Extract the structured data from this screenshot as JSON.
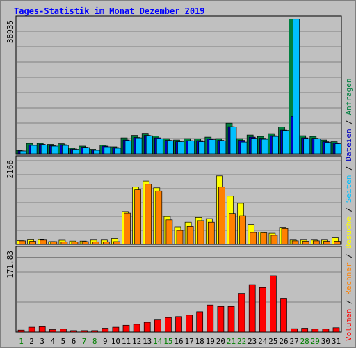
{
  "chart_data": {
    "type": "bar",
    "title": "Tages-Statistik im Monat Dezember 2019",
    "categories": [
      "1",
      "2",
      "3",
      "4",
      "5",
      "6",
      "7",
      "8",
      "9",
      "10",
      "11",
      "12",
      "13",
      "14",
      "15",
      "16",
      "17",
      "18",
      "19",
      "20",
      "21",
      "22",
      "23",
      "24",
      "25",
      "26",
      "27",
      "28",
      "29",
      "30",
      "31"
    ],
    "weekend_days": [
      "1",
      "7",
      "8",
      "14",
      "15",
      "21",
      "22",
      "28",
      "29"
    ],
    "colors": {
      "background": "#c0c0c0",
      "title": "#0000ff",
      "weekday_label": "#000000",
      "weekend_label": "#008000"
    },
    "panels": [
      {
        "name": "top",
        "ytick": "38935",
        "ymax": 38935,
        "series": [
          {
            "name": "Anfragen",
            "color": "#008040",
            "values": [
              1000,
              3000,
              3000,
              2700,
              2900,
              1700,
              2200,
              1300,
              2500,
              2000,
              4600,
              5300,
              5900,
              5100,
              4400,
              4000,
              4400,
              4300,
              4800,
              4400,
              8800,
              4400,
              5400,
              5000,
              5800,
              7700,
              38850,
              5200,
              5000,
              4000,
              3500
            ]
          },
          {
            "name": "Dateien",
            "color": "#0000c0",
            "values": [
              850,
              2500,
              2700,
              2300,
              2600,
              1400,
              1900,
              1100,
              2200,
              1800,
              4000,
              4700,
              5300,
              4600,
              3900,
              3500,
              3800,
              3800,
              4300,
              3900,
              7800,
              3900,
              4800,
              4500,
              5200,
              6800,
              10800,
              4600,
              4500,
              3500,
              3100
            ]
          },
          {
            "name": "Seiten",
            "color": "#00c0ff",
            "values": [
              800,
              2400,
              2500,
              2200,
              2400,
              1300,
              1800,
              1000,
              2000,
              1600,
              3800,
              4600,
              5200,
              4300,
              3800,
              3500,
              3700,
              3500,
              4100,
              3700,
              7700,
              3400,
              4500,
              4200,
              5000,
              6700,
              38800,
              4400,
              4300,
              3300,
              2900
            ]
          }
        ]
      },
      {
        "name": "middle",
        "ytick": "2166",
        "ymax": 2166,
        "series": [
          {
            "name": "Besuche",
            "color": "#ffff00",
            "values": [
              95,
              115,
              120,
              70,
              105,
              85,
              85,
              110,
              110,
              150,
              830,
              1450,
              1600,
              1430,
              700,
              440,
              560,
              680,
              650,
              1730,
              1220,
              1040,
              500,
              310,
              280,
              430,
              110,
              110,
              110,
              110,
              165
            ]
          },
          {
            "name": "Rechner",
            "color": "#ff8000",
            "values": [
              90,
              80,
              110,
              70,
              65,
              60,
              70,
              65,
              65,
              70,
              790,
              1380,
              1520,
              1350,
              620,
              350,
              450,
              600,
              560,
              1450,
              780,
              720,
              300,
              290,
              230,
              400,
              90,
              80,
              90,
              80,
              80
            ]
          }
        ]
      },
      {
        "name": "bottom",
        "ytick": "171.83",
        "ymax": 171.83,
        "series": [
          {
            "name": "Volumen",
            "color": "#ff0000",
            "values": [
              4,
              10,
              11,
              5,
              6,
              3,
              3,
              3,
              8,
              10,
              14,
              16,
              20,
              25,
              30,
              32,
              35,
              42,
              56,
              53,
              53,
              80,
              98,
              92,
              117,
              70,
              7,
              8,
              6,
              6,
              9
            ]
          }
        ]
      }
    ],
    "legend": [
      {
        "label": "Volumen",
        "color": "#ff0000"
      },
      {
        "label": "/",
        "color": "#000000"
      },
      {
        "label": "Rechner",
        "color": "#ff8000"
      },
      {
        "label": "/",
        "color": "#000000"
      },
      {
        "label": "Besuche",
        "color": "#ffff00"
      },
      {
        "label": "/",
        "color": "#000000"
      },
      {
        "label": "Seiten",
        "color": "#00c0ff"
      },
      {
        "label": "/",
        "color": "#000000"
      },
      {
        "label": "Dateien",
        "color": "#0000c0"
      },
      {
        "label": "/",
        "color": "#000000"
      },
      {
        "label": "Anfragen",
        "color": "#008040"
      }
    ],
    "grid": true,
    "legend_placement": "right (vertical)"
  }
}
